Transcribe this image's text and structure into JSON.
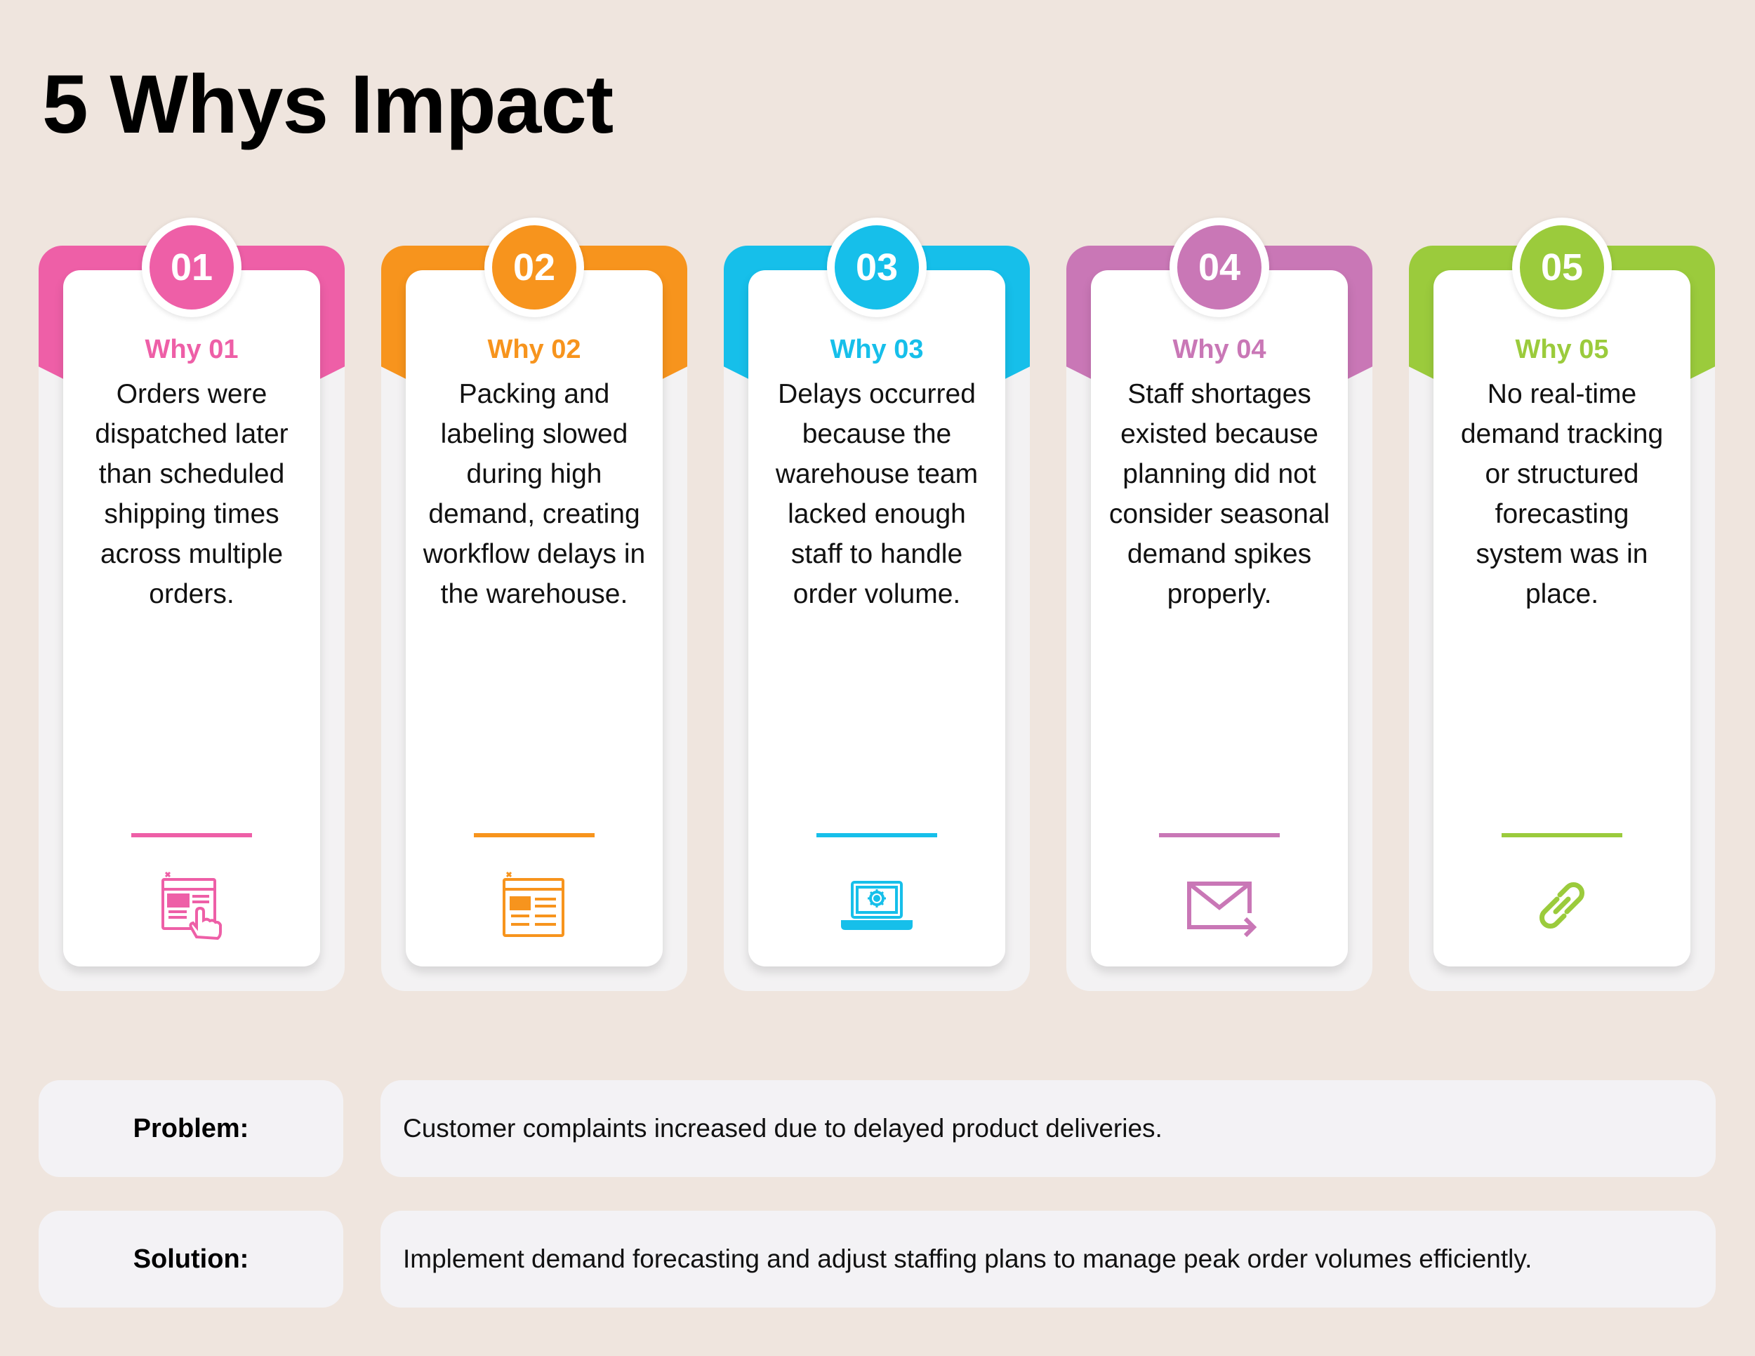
{
  "title": "5 Whys Impact",
  "whys": [
    {
      "number": "01",
      "heading": "Why 01",
      "text": "Orders were dispatched later than scheduled shipping times across multiple orders.",
      "color": "#ee5fa7",
      "icon": "web-page-click-icon"
    },
    {
      "number": "02",
      "heading": "Why 02",
      "text": "Packing and labeling slowed during high demand, creating workflow delays in the warehouse.",
      "color": "#f7941d",
      "icon": "browser-window-icon"
    },
    {
      "number": "03",
      "heading": "Why 03",
      "text": "Delays occurred because the warehouse team lacked enough staff to handle order volume.",
      "color": "#16bfea",
      "icon": "laptop-settings-icon"
    },
    {
      "number": "04",
      "heading": "Why 04",
      "text": "Staff shortages existed because planning did not consider seasonal demand spikes properly.",
      "color": "#c977b6",
      "icon": "envelope-send-icon"
    },
    {
      "number": "05",
      "heading": "Why 05",
      "text": "No real-time demand tracking or structured forecasting system was in place.",
      "color": "#9bcb3c",
      "icon": "chain-link-icon"
    }
  ],
  "problem": {
    "label": "Problem:",
    "text": "Customer complaints increased due to delayed product deliveries."
  },
  "solution": {
    "label": "Solution:",
    "text": "Implement demand forecasting and adjust staffing plans to manage peak order volumes efficiently."
  }
}
